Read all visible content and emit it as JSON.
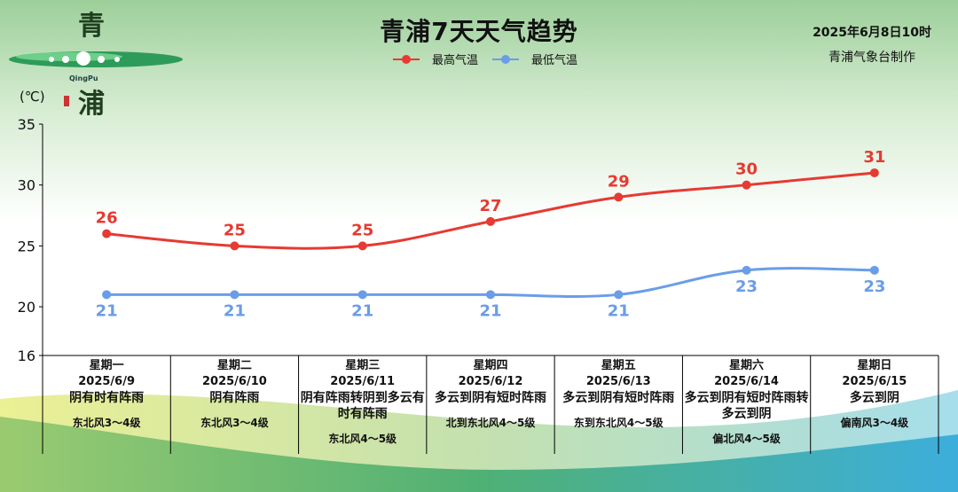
{
  "header": {
    "title": "青浦7天天气趋势",
    "issue_time": "2025年6月8日10时",
    "issuer": "青浦气象台制作",
    "unit": "(℃)",
    "logo_text_top": "青",
    "logo_text_bottom": "浦",
    "logo_en": "QingPu"
  },
  "legend": [
    {
      "name": "最高气温",
      "color": "#e63a32"
    },
    {
      "name": "最低气温",
      "color": "#6a9de8"
    }
  ],
  "colors": {
    "high": "#e63a32",
    "low": "#6a9de8"
  },
  "chart_data": {
    "type": "line",
    "title": "青浦7天天气趋势",
    "ylabel": "(℃)",
    "ylim": [
      16,
      35
    ],
    "yticks": [
      16,
      20,
      25,
      30,
      35
    ],
    "categories": [
      "2025/6/9",
      "2025/6/10",
      "2025/6/11",
      "2025/6/12",
      "2025/6/13",
      "2025/6/14",
      "2025/6/15"
    ],
    "series": [
      {
        "name": "最高气温",
        "values": [
          26,
          25,
          25,
          27,
          29,
          30,
          31
        ]
      },
      {
        "name": "最低气温",
        "values": [
          21,
          21,
          21,
          21,
          21,
          23,
          23
        ]
      }
    ],
    "legend_position": "top-center"
  },
  "days": [
    {
      "weekday": "星期一",
      "date": "2025/6/9",
      "weather": "阴有时有阵雨",
      "wind": "东北风3～4级"
    },
    {
      "weekday": "星期二",
      "date": "2025/6/10",
      "weather": "阴有阵雨",
      "wind": "东北风3～4级"
    },
    {
      "weekday": "星期三",
      "date": "2025/6/11",
      "weather": "阴有阵雨转阴到多云有时有阵雨",
      "wind": "东北风4～5级"
    },
    {
      "weekday": "星期四",
      "date": "2025/6/12",
      "weather": "多云到阴有短时阵雨",
      "wind": "北到东北风4～5级"
    },
    {
      "weekday": "星期五",
      "date": "2025/6/13",
      "weather": "多云到阴有短时阵雨",
      "wind": "东到东北风4～5级"
    },
    {
      "weekday": "星期六",
      "date": "2025/6/14",
      "weather": "多云到阴有短时阵雨转多云到阴",
      "wind": "偏北风4～5级"
    },
    {
      "weekday": "星期日",
      "date": "2025/6/15",
      "weather": "多云到阴",
      "wind": "偏南风3～4级"
    }
  ]
}
